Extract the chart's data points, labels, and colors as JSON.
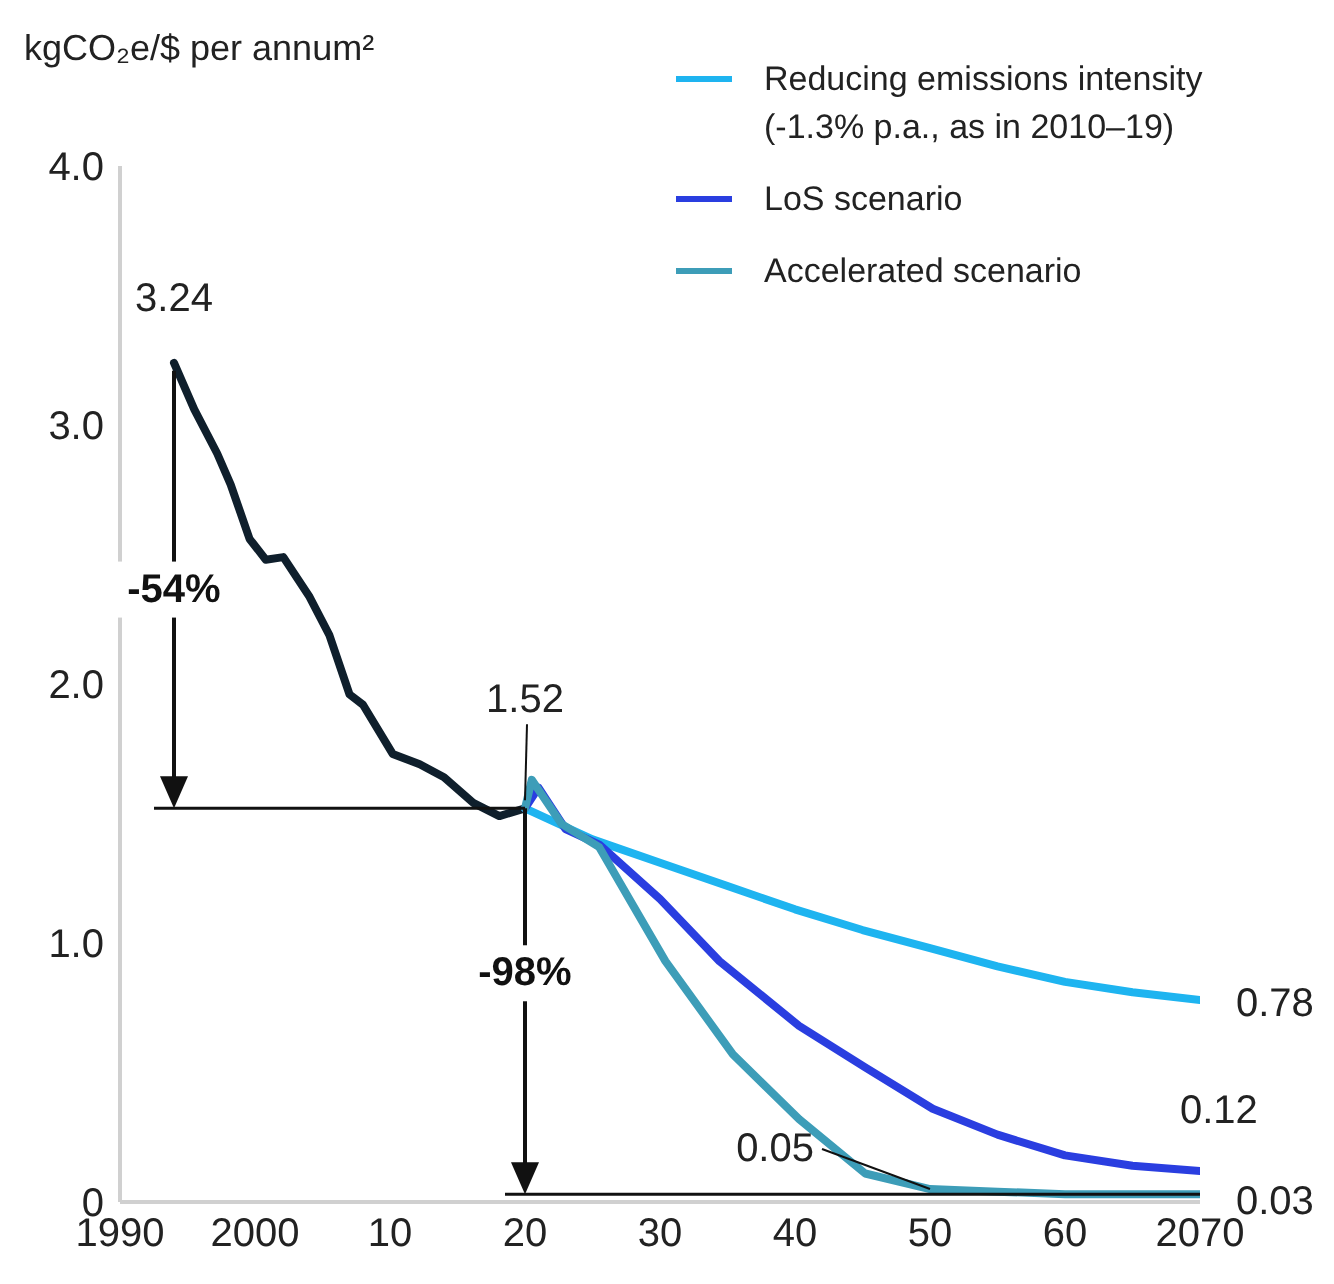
{
  "chart_data": {
    "type": "line",
    "ylabel": "kgCO₂e/$ per annum²",
    "xlim": [
      1990,
      2070
    ],
    "xticks": [
      1990,
      2000,
      {
        "value": 2010,
        "label": "10"
      },
      {
        "value": 2020,
        "label": "20"
      },
      {
        "value": 2030,
        "label": "30"
      },
      {
        "value": 2040,
        "label": "40"
      },
      {
        "value": 2050,
        "label": "50"
      },
      {
        "value": 2060,
        "label": "60"
      },
      2070
    ],
    "ylim": [
      0,
      4
    ],
    "yticks": [
      0,
      {
        "value": 1,
        "label": "1.0"
      },
      {
        "value": 2,
        "label": "2.0"
      },
      {
        "value": 3,
        "label": "3.0"
      },
      {
        "value": 4,
        "label": "4.0"
      }
    ],
    "grid": false,
    "legend": "top right",
    "marker": "none",
    "line_style": "solid",
    "series": [
      {
        "color": "#0f1f2c",
        "x": [
          1994,
          1995.5,
          1997.2,
          1998.2,
          1999.6,
          2000.8,
          2002.1,
          2004,
          2005.5,
          2007,
          2008,
          2010.2,
          2012.2,
          2014,
          2016.2,
          2018.1,
          2020
        ],
        "values": [
          3.24,
          3.06,
          2.89,
          2.77,
          2.56,
          2.48,
          2.49,
          2.34,
          2.19,
          1.96,
          1.92,
          1.73,
          1.69,
          1.64,
          1.54,
          1.49,
          1.52
        ]
      },
      {
        "name": "Reducing emissions intensity (-1.3% p.a., as in 2010–19)",
        "color": "#1eb4f0",
        "x": [
          2020,
          2025,
          2030,
          2035,
          2040,
          2045,
          2050,
          2055,
          2060,
          2065,
          2070
        ],
        "values": [
          1.52,
          1.4,
          1.31,
          1.22,
          1.13,
          1.05,
          0.98,
          0.91,
          0.85,
          0.81,
          0.78
        ]
      },
      {
        "name": "LoS scenario",
        "color": "#2a3ee0",
        "x": [
          2020,
          2021,
          2023,
          2025.5,
          2030,
          2034.4,
          2040.3,
          2045.2,
          2050.2,
          2055,
          2060,
          2065,
          2070
        ],
        "values": [
          1.52,
          1.6,
          1.44,
          1.38,
          1.17,
          0.93,
          0.68,
          0.52,
          0.36,
          0.26,
          0.18,
          0.14,
          0.12
        ]
      },
      {
        "name": "Accelerated scenario",
        "color": "#3d9db8",
        "x": [
          2020,
          2020.5,
          2022.7,
          2025.5,
          2030.4,
          2035.4,
          2040.3,
          2045.2,
          2050,
          2055,
          2060,
          2070
        ],
        "values": [
          1.52,
          1.63,
          1.46,
          1.37,
          0.93,
          0.57,
          0.32,
          0.11,
          0.05,
          0.04,
          0.03,
          0.03
        ]
      }
    ],
    "annotations": [
      {
        "text": "3.24",
        "x": 1994,
        "y": 3.24
      },
      {
        "text": "1.52",
        "x": 2020,
        "y": 1.52
      },
      {
        "text": "0.78",
        "x": 2070,
        "y": 0.78
      },
      {
        "text": "0.12",
        "x": 2070,
        "y": 0.12
      },
      {
        "text": "0.05",
        "x": 2050,
        "y": 0.05
      },
      {
        "text": "0.03",
        "x": 2070,
        "y": 0.03
      },
      "-54%",
      "-98%"
    ]
  }
}
